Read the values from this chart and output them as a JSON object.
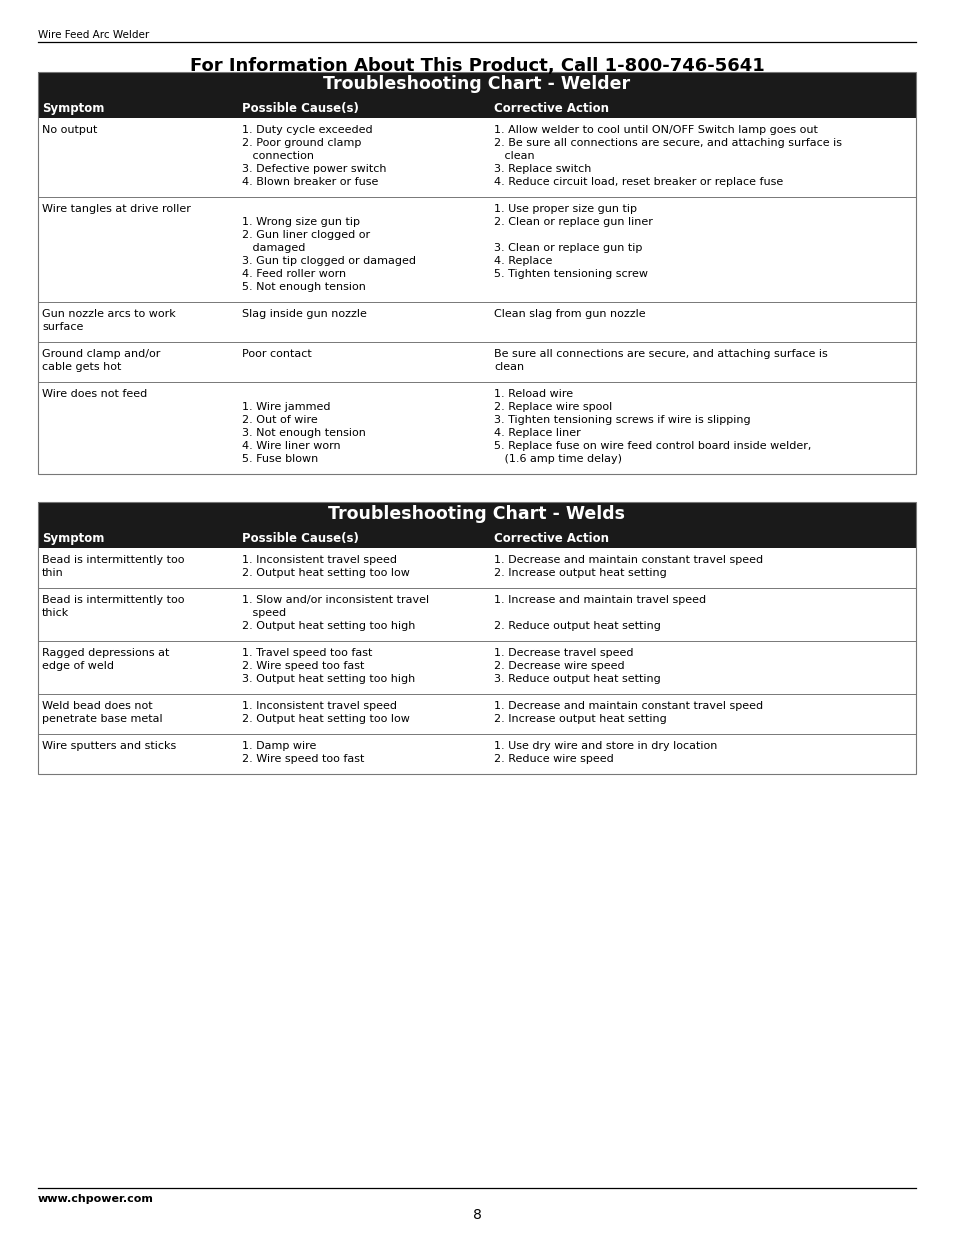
{
  "page_header_small": "Wire Feed Arc Welder",
  "page_title": "For Information About This Product, Call 1-800-746-5641",
  "page_footer_url": "www.chpower.com",
  "page_number": "8",
  "bg_color": "#ffffff",
  "header_bg": "#1a1a1a",
  "col_headers": [
    "Symptom",
    "Possible Cause(s)",
    "Corrective Action"
  ],
  "table1_title": "Troubleshooting Chart - Welder",
  "table1_rows": [
    {
      "symptom": "No output",
      "causes": [
        "1. Duty cycle exceeded",
        "2. Poor ground clamp",
        "   connection",
        "3. Defective power switch",
        "4. Blown breaker or fuse"
      ],
      "actions": [
        "1. Allow welder to cool until ON/OFF Switch lamp goes out",
        "2. Be sure all connections are secure, and attaching surface is",
        "   clean",
        "3. Replace switch",
        "4. Reduce circuit load, reset breaker or replace fuse"
      ]
    },
    {
      "symptom": "Wire tangles at drive roller",
      "causes": [
        "",
        "1. Wrong size gun tip",
        "2. Gun liner clogged or",
        "   damaged",
        "3. Gun tip clogged or damaged",
        "4. Feed roller worn",
        "5. Not enough tension"
      ],
      "actions": [
        "1. Use proper size gun tip",
        "2. Clean or replace gun liner",
        "",
        "3. Clean or replace gun tip",
        "4. Replace",
        "5. Tighten tensioning screw"
      ]
    },
    {
      "symptom": "Gun nozzle arcs to work\nsurface",
      "causes": [
        "Slag inside gun nozzle"
      ],
      "actions": [
        "Clean slag from gun nozzle"
      ]
    },
    {
      "symptom": "Ground clamp and/or\ncable gets hot",
      "causes": [
        "Poor contact"
      ],
      "actions": [
        "Be sure all connections are secure, and attaching surface is",
        "clean"
      ]
    },
    {
      "symptom": "Wire does not feed",
      "causes": [
        "",
        "1. Wire jammed",
        "2. Out of wire",
        "3. Not enough tension",
        "4. Wire liner worn",
        "5. Fuse blown"
      ],
      "actions": [
        "1. Reload wire",
        "2. Replace wire spool",
        "3. Tighten tensioning screws if wire is slipping",
        "4. Replace liner",
        "5. Replace fuse on wire feed control board inside welder,",
        "   (1.6 amp time delay)"
      ]
    }
  ],
  "table2_title": "Troubleshooting Chart - Welds",
  "table2_rows": [
    {
      "symptom": "Bead is intermittently too\nthin",
      "causes": [
        "1. Inconsistent travel speed",
        "2. Output heat setting too low"
      ],
      "actions": [
        "1. Decrease and maintain constant travel speed",
        "2. Increase output heat setting"
      ]
    },
    {
      "symptom": "Bead is intermittently too\nthick",
      "causes": [
        "1. Slow and/or inconsistent travel",
        "   speed",
        "2. Output heat setting too high"
      ],
      "actions": [
        "1. Increase and maintain travel speed",
        "",
        "2. Reduce output heat setting"
      ]
    },
    {
      "symptom": "Ragged depressions at\nedge of weld",
      "causes": [
        "1. Travel speed too fast",
        "2. Wire speed too fast",
        "3. Output heat setting too high"
      ],
      "actions": [
        "1. Decrease travel speed",
        "2. Decrease wire speed",
        "3. Reduce output heat setting"
      ]
    },
    {
      "symptom": "Weld bead does not\npenetrate base metal",
      "causes": [
        "1. Inconsistent travel speed",
        "2. Output heat setting too low"
      ],
      "actions": [
        "1. Decrease and maintain constant travel speed",
        "2. Increase output heat setting"
      ]
    },
    {
      "symptom": "Wire sputters and sticks",
      "causes": [
        "1. Damp wire",
        "2. Wire speed too fast"
      ],
      "actions": [
        "1. Use dry wire and store in dry location",
        "2. Reduce wire speed"
      ]
    }
  ]
}
